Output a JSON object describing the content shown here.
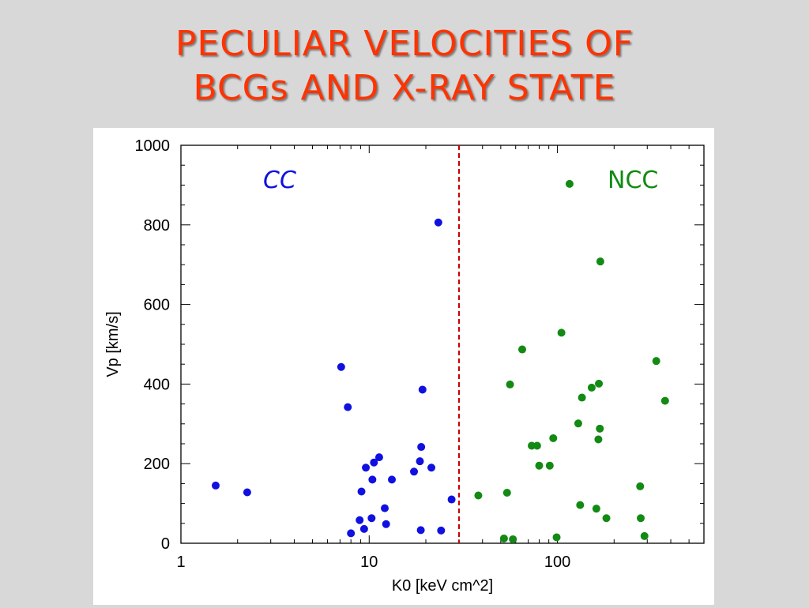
{
  "slide": {
    "title_line1": "PECULIAR VELOCITIES OF",
    "title_line2": "BCGs AND X-RAY STATE"
  },
  "colors": {
    "title": "#ff3300",
    "cc": "#1010e0",
    "ncc": "#138a13",
    "divider": "#cc0000"
  },
  "chart_data": {
    "type": "scatter",
    "xscale": "log",
    "xlim": [
      1,
      600
    ],
    "ylim": [
      0,
      1000
    ],
    "xlabel": "K0 [keV cm^2]",
    "ylabel": "Vp [km/s]",
    "x_ticks": [
      {
        "value": 1,
        "label": "1"
      },
      {
        "value": 10,
        "label": "10"
      },
      {
        "value": 100,
        "label": "100"
      }
    ],
    "y_ticks": [
      {
        "value": 0,
        "label": "0"
      },
      {
        "value": 200,
        "label": "200"
      },
      {
        "value": 400,
        "label": "400"
      },
      {
        "value": 600,
        "label": "600"
      },
      {
        "value": 800,
        "label": "800"
      },
      {
        "value": 1000,
        "label": "1000"
      }
    ],
    "divider_x": 30,
    "grid": false,
    "series": [
      {
        "name": "CC",
        "color": "#1010e0",
        "points": [
          [
            1.53,
            145
          ],
          [
            2.25,
            128
          ],
          [
            7.1,
            443
          ],
          [
            7.7,
            342
          ],
          [
            8.0,
            25
          ],
          [
            8.9,
            58
          ],
          [
            9.1,
            130
          ],
          [
            9.4,
            36
          ],
          [
            9.6,
            190
          ],
          [
            10.3,
            63
          ],
          [
            10.4,
            160
          ],
          [
            10.6,
            203
          ],
          [
            11.3,
            216
          ],
          [
            12.1,
            88
          ],
          [
            12.3,
            48
          ],
          [
            13.2,
            160
          ],
          [
            17.3,
            180
          ],
          [
            18.6,
            206
          ],
          [
            18.8,
            33
          ],
          [
            18.9,
            242
          ],
          [
            19.2,
            386
          ],
          [
            21.4,
            190
          ],
          [
            23.3,
            806
          ],
          [
            24.1,
            32
          ],
          [
            27.4,
            110
          ]
        ]
      },
      {
        "name": "NCC",
        "color": "#138a13",
        "points": [
          [
            38,
            120
          ],
          [
            52,
            12
          ],
          [
            54,
            127
          ],
          [
            56,
            399
          ],
          [
            58,
            10
          ],
          [
            65,
            487
          ],
          [
            73,
            245
          ],
          [
            78,
            245
          ],
          [
            80,
            195
          ],
          [
            91,
            195
          ],
          [
            95,
            264
          ],
          [
            99,
            15
          ],
          [
            105,
            529
          ],
          [
            116,
            903
          ],
          [
            129,
            301
          ],
          [
            132,
            96
          ],
          [
            135,
            366
          ],
          [
            152,
            391
          ],
          [
            161,
            87
          ],
          [
            165,
            261
          ],
          [
            166,
            401
          ],
          [
            168,
            288
          ],
          [
            169,
            708
          ],
          [
            182,
            63
          ],
          [
            275,
            143
          ],
          [
            277,
            63
          ],
          [
            290,
            18
          ],
          [
            335,
            458
          ],
          [
            373,
            358
          ]
        ]
      }
    ],
    "annotations": [
      {
        "text": "CC",
        "color": "#1010e0"
      },
      {
        "text": "NCC",
        "color": "#138a13"
      }
    ]
  }
}
